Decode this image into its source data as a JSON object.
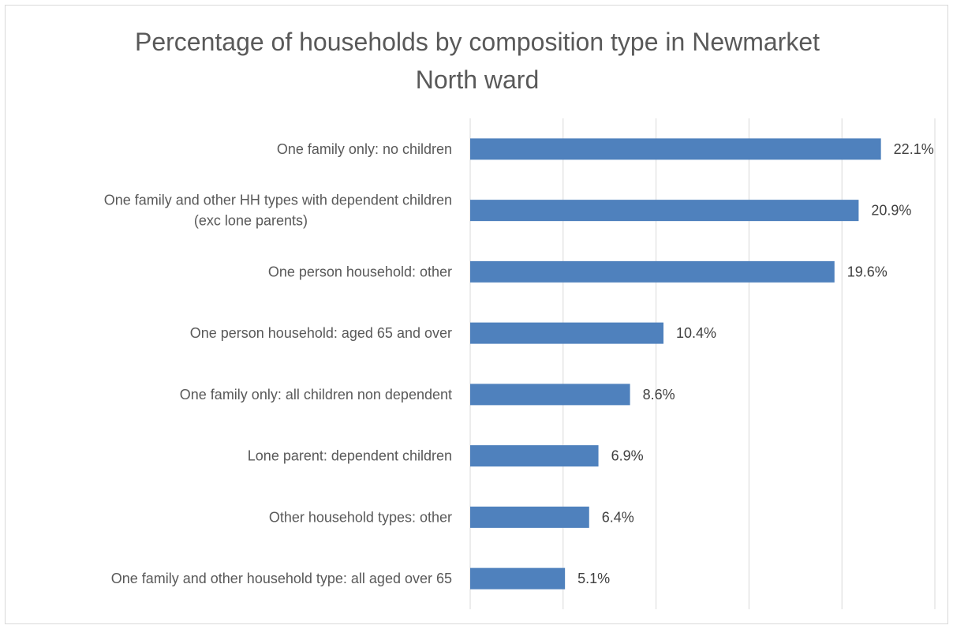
{
  "chart_data": {
    "type": "bar",
    "orientation": "horizontal",
    "title": "Percentage of households by composition type in Newmarket\nNorth ward",
    "categories": [
      "One family only: no children",
      "One family and other HH types with dependent children\n(exc lone parents)",
      "One person household: other",
      "One person household: aged 65 and over",
      "One family only: all children non dependent",
      "Lone parent: dependent children",
      "Other household types: other",
      "One family and other household type: all aged over 65"
    ],
    "values": [
      22.1,
      20.9,
      19.6,
      10.4,
      8.6,
      6.9,
      6.4,
      5.1
    ],
    "data_labels": [
      "22.1%",
      "20.9%",
      "19.6%",
      "10.4%",
      "8.6%",
      "6.9%",
      "6.4%",
      "5.1%"
    ],
    "xlim": [
      0,
      25
    ],
    "x_gridline_step": 5,
    "x_tick_labels_shown": false,
    "grid": true,
    "legend": "none",
    "bar_color": "#4f81bd",
    "gridline_color": "#d9d9d9"
  }
}
